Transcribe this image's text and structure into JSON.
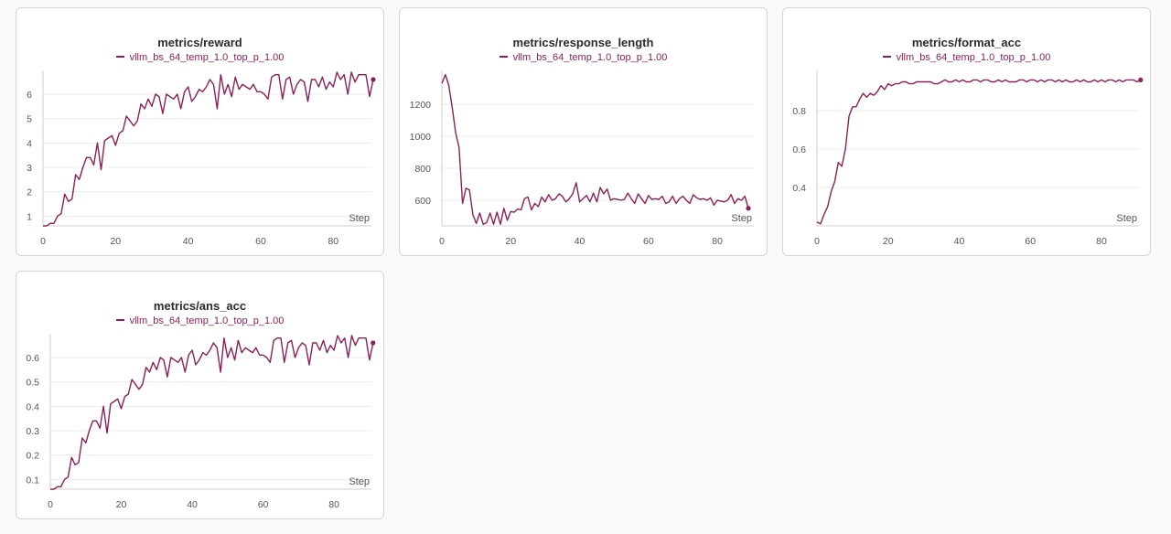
{
  "colors": {
    "series": "#8d2058",
    "grid": "#ececec",
    "axis": "#cfcfcf",
    "text": "#555555"
  },
  "chart_data": [
    {
      "type": "line",
      "title": "metrics/reward",
      "xlabel": "Step",
      "legend": "vllm_bs_64_temp_1.0_top_p_1.00",
      "xlim": [
        0,
        89
      ],
      "ylim": [
        0.6,
        6.9
      ],
      "xticks": [
        0,
        20,
        40,
        60,
        80
      ],
      "yticks": [
        1,
        2,
        3,
        4,
        5,
        6
      ],
      "series": [
        {
          "name": "vllm_bs_64_temp_1.0_top_p_1.00",
          "values": [
            0.6,
            0.6,
            0.7,
            0.7,
            1.0,
            1.1,
            1.9,
            1.6,
            1.7,
            2.7,
            2.5,
            3.0,
            3.4,
            3.4,
            3.1,
            4.0,
            2.9,
            4.1,
            4.2,
            4.3,
            3.9,
            4.4,
            4.5,
            5.1,
            4.9,
            4.7,
            4.9,
            5.6,
            5.4,
            5.8,
            5.5,
            6.0,
            5.9,
            5.2,
            6.0,
            5.9,
            5.8,
            6.0,
            5.4,
            6.1,
            6.3,
            5.7,
            5.9,
            6.2,
            6.1,
            6.3,
            6.6,
            6.4,
            5.4,
            6.8,
            6.0,
            6.4,
            5.9,
            6.7,
            6.2,
            6.4,
            6.3,
            6.2,
            6.4,
            6.1,
            6.1,
            6.0,
            5.8,
            6.7,
            6.8,
            6.8,
            5.8,
            6.6,
            6.7,
            6.0,
            6.4,
            6.6,
            6.5,
            5.7,
            6.6,
            6.6,
            6.3,
            6.7,
            6.2,
            6.5,
            6.3,
            6.9,
            6.6,
            6.8,
            6.0,
            6.9,
            6.5,
            6.8,
            6.8,
            6.8,
            5.9,
            6.6
          ]
        }
      ]
    },
    {
      "type": "line",
      "title": "metrics/response_length",
      "xlabel": "Step",
      "legend": "vllm_bs_64_temp_1.0_top_p_1.00",
      "xlim": [
        0,
        89
      ],
      "ylim": [
        440,
        1400
      ],
      "xticks": [
        0,
        20,
        40,
        60,
        80
      ],
      "yticks": [
        600,
        800,
        1000,
        1200
      ],
      "series": [
        {
          "name": "vllm_bs_64_temp_1.0_top_p_1.00",
          "values": [
            1330,
            1385,
            1320,
            1180,
            1020,
            930,
            580,
            675,
            665,
            510,
            455,
            520,
            450,
            460,
            520,
            450,
            525,
            450,
            550,
            475,
            530,
            525,
            545,
            540,
            610,
            620,
            540,
            580,
            560,
            620,
            590,
            635,
            600,
            610,
            640,
            625,
            590,
            610,
            640,
            710,
            590,
            610,
            630,
            590,
            645,
            590,
            680,
            640,
            670,
            600,
            610,
            605,
            600,
            605,
            645,
            610,
            580,
            640,
            610,
            580,
            630,
            605,
            610,
            605,
            625,
            580,
            590,
            625,
            580,
            610,
            625,
            600,
            580,
            635,
            615,
            605,
            610,
            600,
            615,
            570,
            600,
            595,
            590,
            600,
            635,
            580,
            610,
            600,
            625,
            550
          ]
        }
      ]
    },
    {
      "type": "line",
      "title": "metrics/format_acc",
      "xlabel": "Step",
      "legend": "vllm_bs_64_temp_1.0_top_p_1.00",
      "xlim": [
        0,
        89
      ],
      "ylim": [
        0.2,
        1.0
      ],
      "xticks": [
        0,
        20,
        40,
        60,
        80
      ],
      "yticks": [
        0.4,
        0.6,
        0.8
      ],
      "series": [
        {
          "name": "vllm_bs_64_temp_1.0_top_p_1.00",
          "values": [
            0.22,
            0.21,
            0.26,
            0.3,
            0.38,
            0.43,
            0.53,
            0.51,
            0.6,
            0.77,
            0.82,
            0.82,
            0.86,
            0.89,
            0.87,
            0.89,
            0.88,
            0.9,
            0.93,
            0.91,
            0.94,
            0.93,
            0.94,
            0.94,
            0.95,
            0.95,
            0.94,
            0.94,
            0.95,
            0.95,
            0.95,
            0.95,
            0.95,
            0.94,
            0.94,
            0.95,
            0.96,
            0.95,
            0.95,
            0.96,
            0.95,
            0.96,
            0.95,
            0.95,
            0.96,
            0.96,
            0.95,
            0.96,
            0.96,
            0.95,
            0.95,
            0.96,
            0.95,
            0.96,
            0.95,
            0.95,
            0.95,
            0.96,
            0.96,
            0.95,
            0.96,
            0.96,
            0.95,
            0.96,
            0.95,
            0.96,
            0.96,
            0.95,
            0.96,
            0.95,
            0.96,
            0.95,
            0.95,
            0.96,
            0.95,
            0.96,
            0.95,
            0.95,
            0.96,
            0.95,
            0.96,
            0.95,
            0.96,
            0.96,
            0.95,
            0.96,
            0.95,
            0.96,
            0.96,
            0.96,
            0.95,
            0.96
          ]
        }
      ]
    },
    {
      "type": "line",
      "title": "metrics/ans_acc",
      "xlabel": "Step",
      "legend": "vllm_bs_64_temp_1.0_top_p_1.00",
      "xlim": [
        0,
        89
      ],
      "ylim": [
        0.06,
        0.69
      ],
      "xticks": [
        0,
        20,
        40,
        60,
        80
      ],
      "yticks": [
        0.1,
        0.2,
        0.3,
        0.4,
        0.5,
        0.6
      ],
      "series": [
        {
          "name": "vllm_bs_64_temp_1.0_top_p_1.00",
          "values": [
            0.06,
            0.06,
            0.07,
            0.07,
            0.1,
            0.11,
            0.19,
            0.16,
            0.17,
            0.27,
            0.25,
            0.3,
            0.34,
            0.34,
            0.31,
            0.4,
            0.29,
            0.41,
            0.42,
            0.43,
            0.39,
            0.44,
            0.45,
            0.51,
            0.49,
            0.47,
            0.49,
            0.56,
            0.54,
            0.58,
            0.55,
            0.6,
            0.59,
            0.52,
            0.6,
            0.59,
            0.58,
            0.6,
            0.54,
            0.61,
            0.63,
            0.57,
            0.59,
            0.62,
            0.61,
            0.63,
            0.66,
            0.64,
            0.54,
            0.68,
            0.6,
            0.64,
            0.59,
            0.67,
            0.62,
            0.64,
            0.63,
            0.62,
            0.64,
            0.61,
            0.61,
            0.6,
            0.58,
            0.67,
            0.68,
            0.68,
            0.58,
            0.66,
            0.67,
            0.6,
            0.64,
            0.66,
            0.65,
            0.57,
            0.66,
            0.66,
            0.63,
            0.67,
            0.62,
            0.65,
            0.63,
            0.69,
            0.66,
            0.68,
            0.6,
            0.69,
            0.65,
            0.68,
            0.68,
            0.68,
            0.59,
            0.66
          ]
        }
      ]
    }
  ]
}
